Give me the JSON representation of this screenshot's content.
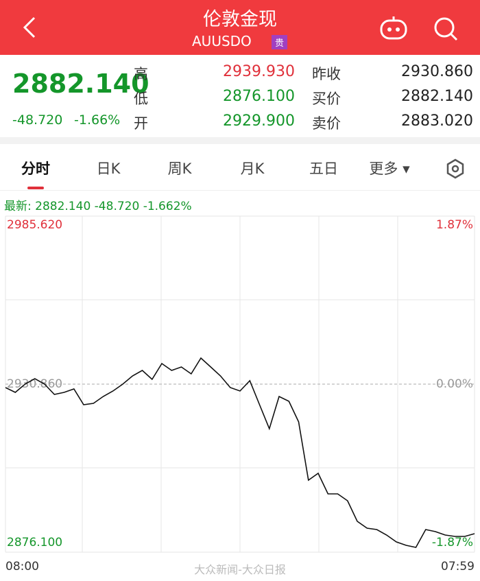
{
  "header": {
    "title": "伦敦金现",
    "symbol": "AUUSDO",
    "badge": "贵"
  },
  "quote": {
    "price": "2882.140",
    "change": "-48.720",
    "change_pct": "-1.66%",
    "fields": [
      {
        "label": "高",
        "value": "2939.930"
      },
      {
        "label": "昨收",
        "value": "2930.860"
      },
      {
        "label": "低",
        "value": "2876.100"
      },
      {
        "label": "买价",
        "value": "2882.140"
      },
      {
        "label": "开",
        "value": "2929.900"
      },
      {
        "label": "卖价",
        "value": "2883.020"
      }
    ]
  },
  "tabs": [
    "分时",
    "日K",
    "周K",
    "月K",
    "五日",
    "更多"
  ],
  "latest": {
    "label": "最新:",
    "price": "2882.140",
    "change": "-48.720",
    "change_pct": "-1.662%"
  },
  "watermark": "大众新闻-大众日报",
  "chart_data": {
    "type": "line",
    "color": "#111111",
    "categories": [
      "08:00",
      null,
      null,
      null,
      null,
      null,
      null,
      null,
      null,
      null,
      null,
      null,
      null,
      null,
      null,
      null,
      null,
      null,
      null,
      null,
      null,
      null,
      null,
      null,
      null,
      null,
      null,
      null,
      null,
      null,
      null,
      null,
      null,
      null,
      null,
      null,
      null,
      null,
      null,
      null,
      null,
      null,
      null,
      null,
      null,
      null,
      null,
      null,
      "07:59"
    ],
    "values": [
      2929.74,
      2928.18,
      2930.86,
      2932.65,
      2930.86,
      2927.51,
      2928.18,
      2929.3,
      2924.16,
      2924.6,
      2926.84,
      2928.62,
      2930.86,
      2933.54,
      2935.33,
      2932.42,
      2937.57,
      2935.33,
      2936.45,
      2934.21,
      2939.35,
      2936.45,
      2933.54,
      2929.74,
      2928.62,
      2931.98,
      2924.16,
      2916.33,
      2926.84,
      2925.27,
      2918.57,
      2899.57,
      2901.81,
      2895.1,
      2895.1,
      2892.86,
      2886.16,
      2883.92,
      2883.48,
      2881.69,
      2879.46,
      2878.34,
      2877.67,
      2883.48,
      2882.81,
      2881.69,
      2881.24,
      2881.24,
      2882.14
    ],
    "ylim": [
      2876.1,
      2985.62
    ],
    "yticks": [
      {
        "value": 2985.62,
        "label": "2985.620"
      },
      {
        "value": 2930.86,
        "label": "2930.860"
      },
      {
        "value": 2876.1,
        "label": "2876.100"
      }
    ],
    "y2lim": [
      -1.87,
      1.87
    ],
    "y2ticks": [
      {
        "value": 1.87,
        "label": "1.87%"
      },
      {
        "value": 0,
        "label": "0.00%"
      },
      {
        "value": -1.87,
        "label": "-1.87%"
      }
    ]
  }
}
